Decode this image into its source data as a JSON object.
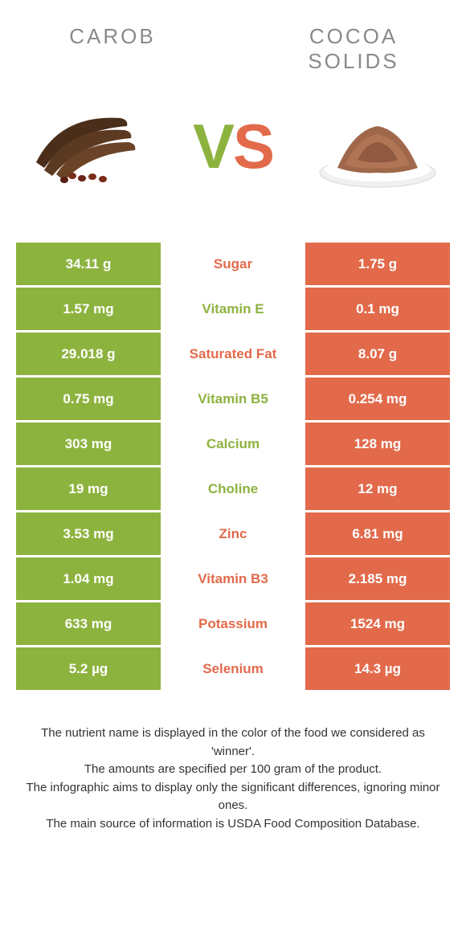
{
  "header": {
    "left": "CAROB",
    "right": "COCOA SOLIDS"
  },
  "vs": {
    "v": "V",
    "s": "S"
  },
  "colors": {
    "green": "#8db33f",
    "orange": "#e26a4b",
    "text": "#333333",
    "header_text": "#8a8a8a"
  },
  "rows": [
    {
      "left": "34.11 g",
      "mid": "Sugar",
      "right": "1.75 g",
      "winner": "orange"
    },
    {
      "left": "1.57 mg",
      "mid": "Vitamin E",
      "right": "0.1 mg",
      "winner": "green"
    },
    {
      "left": "29.018 g",
      "mid": "Saturated Fat",
      "right": "8.07 g",
      "winner": "orange"
    },
    {
      "left": "0.75 mg",
      "mid": "Vitamin B5",
      "right": "0.254 mg",
      "winner": "green"
    },
    {
      "left": "303 mg",
      "mid": "Calcium",
      "right": "128 mg",
      "winner": "green"
    },
    {
      "left": "19 mg",
      "mid": "Choline",
      "right": "12 mg",
      "winner": "green"
    },
    {
      "left": "3.53 mg",
      "mid": "Zinc",
      "right": "6.81 mg",
      "winner": "orange"
    },
    {
      "left": "1.04 mg",
      "mid": "Vitamin B3",
      "right": "2.185 mg",
      "winner": "orange"
    },
    {
      "left": "633 mg",
      "mid": "Potassium",
      "right": "1524 mg",
      "winner": "orange"
    },
    {
      "left": "5.2 µg",
      "mid": "Selenium",
      "right": "14.3 µg",
      "winner": "orange"
    }
  ],
  "footer": {
    "line1": "The nutrient name is displayed in the color of the food we considered as 'winner'.",
    "line2": "The amounts are specified per 100 gram of the product.",
    "line3": "The infographic aims to display only the significant differences, ignoring minor ones.",
    "line4": "The main source of information is USDA Food Composition Database."
  }
}
